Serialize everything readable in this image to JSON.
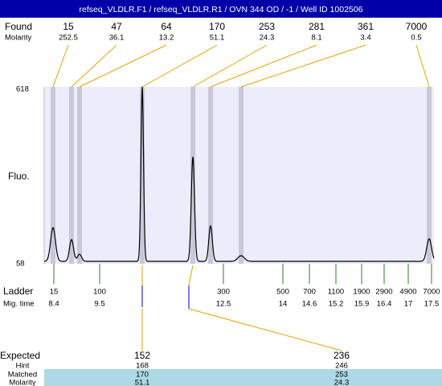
{
  "title": "refseq_VLDLR.F1 / refseq_VLDLR.R1 / OVN 344 OD / -1 / Well ID 1002506",
  "found": {
    "label": "Found",
    "molarity_label": "Molarity",
    "peaks": [
      {
        "size": 15,
        "molarity": 252.5
      },
      {
        "size": 47,
        "molarity": 36.1
      },
      {
        "size": 64,
        "molarity": 13.2
      },
      {
        "size": 170,
        "molarity": 51.1
      },
      {
        "size": 253,
        "molarity": 24.3
      },
      {
        "size": 281,
        "molarity": 8.1
      },
      {
        "size": 361,
        "molarity": 3.4
      },
      {
        "size": 7000,
        "molarity": 0.5
      }
    ]
  },
  "y_axis": {
    "label": "Fluo.",
    "max": 618,
    "min": 58
  },
  "ladder": {
    "label": "Ladder",
    "mig_label": "Mig. time",
    "bands": [
      {
        "size": 15,
        "time": 8.4
      },
      {
        "size": 100,
        "time": 9.5
      },
      {
        "size": 300,
        "time": 12.5
      },
      {
        "size": 500,
        "time": 14
      },
      {
        "size": 700,
        "time": 14.6
      },
      {
        "size": 1100,
        "time": 15.2
      },
      {
        "size": 1900,
        "time": 15.9
      },
      {
        "size": 2900,
        "time": 16.4
      },
      {
        "size": 4900,
        "time": 17
      },
      {
        "size": 7000,
        "time": 17.5
      }
    ]
  },
  "expected": {
    "label": "Expected",
    "hint_label": "Hint",
    "matched_label": "Matched",
    "molarity_label": "Molarity",
    "columns": [
      {
        "expected": 152,
        "hint": 168,
        "matched": 170,
        "molarity": 51.1
      },
      {
        "expected": 236,
        "hint": 246,
        "matched": 253,
        "molarity": 24.3
      }
    ]
  }
}
